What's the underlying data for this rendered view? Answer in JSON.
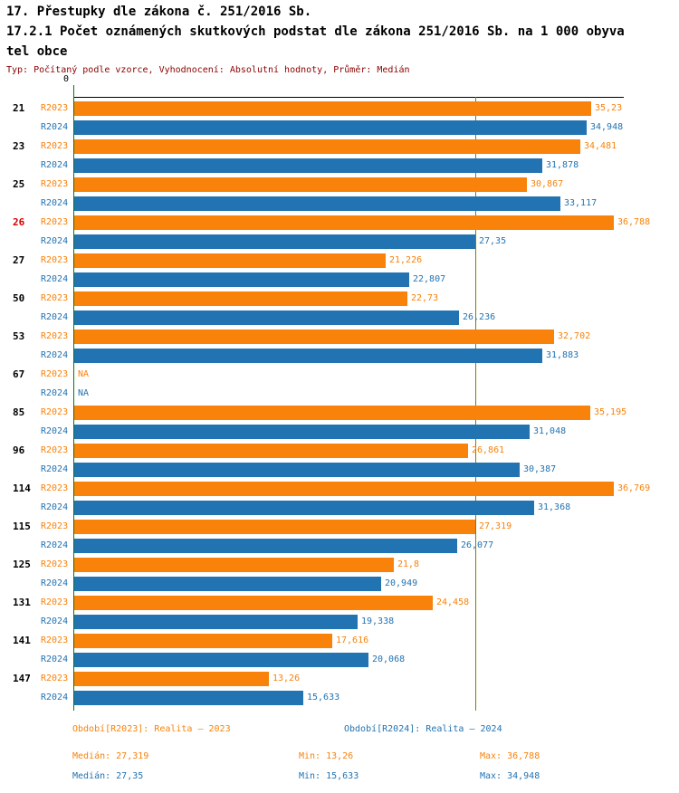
{
  "header": {
    "title_line1": "17. Přestupky dle zákona č. 251/2016 Sb.",
    "title_line2": "17.2.1 Počet oznámených skutkových podstat dle zákona 251/2016 Sb. na 1 000 obyva",
    "title_line3": "tel obce",
    "subtitle": "Typ: Počítaný podle vzorce, Vyhodnocení: Absolutní hodnoty, Průměr: Medián"
  },
  "colors": {
    "r2023": "#F8820A",
    "r2024": "#2273B2",
    "highlight_category": "#D40000",
    "subtitle": "#8B0000",
    "median_line": "#808000",
    "axis": "#007F00"
  },
  "chart_data": {
    "type": "bar",
    "orientation": "horizontal",
    "title": "17.2.1 Počet oznámených skutkových podstat dle zákona 251/2016 Sb. na 1 000 obyvatel obce",
    "xlabel": "",
    "ylabel": "",
    "xlim": [
      0,
      37.4
    ],
    "zero_label": "0",
    "grid": false,
    "median_line_value": 27.335,
    "categories": [
      "21",
      "23",
      "25",
      "26",
      "27",
      "50",
      "53",
      "67",
      "85",
      "96",
      "114",
      "115",
      "125",
      "131",
      "141",
      "147"
    ],
    "highlighted_category": "26",
    "series": [
      {
        "name": "R2023",
        "color": "#F8820A",
        "values": [
          35.23,
          34.481,
          30.867,
          36.788,
          21.226,
          22.73,
          32.702,
          null,
          35.195,
          26.861,
          36.769,
          27.319,
          21.8,
          24.458,
          17.616,
          13.26
        ],
        "labels": [
          "35,23",
          "34,481",
          "30,867",
          "36,788",
          "21,226",
          "22,73",
          "32,702",
          "NA",
          "35,195",
          "26,861",
          "36,769",
          "27,319",
          "21,8",
          "24,458",
          "17,616",
          "13,26"
        ]
      },
      {
        "name": "R2024",
        "color": "#2273B2",
        "values": [
          34.948,
          31.878,
          33.117,
          27.35,
          22.807,
          26.236,
          31.883,
          null,
          31.048,
          30.387,
          31.368,
          26.077,
          20.949,
          19.338,
          20.068,
          15.633
        ],
        "labels": [
          "34,948",
          "31,878",
          "33,117",
          "27,35",
          "22,807",
          "26,236",
          "31,883",
          "NA",
          "31,048",
          "30,387",
          "31,368",
          "26,077",
          "20,949",
          "19,338",
          "20,068",
          "15,633"
        ]
      }
    ],
    "legend_position": "bottom"
  },
  "legend": {
    "r2023": "Období[R2023]: Realita – 2023",
    "r2024": "Období[R2024]: Realita – 2024"
  },
  "stats": {
    "r2023": {
      "median": "Medián: 27,319",
      "min": "Min: 13,26",
      "max": "Max: 36,788"
    },
    "r2024": {
      "median": "Medián: 27,35",
      "min": "Min: 15,633",
      "max": "Max: 34,948"
    }
  }
}
